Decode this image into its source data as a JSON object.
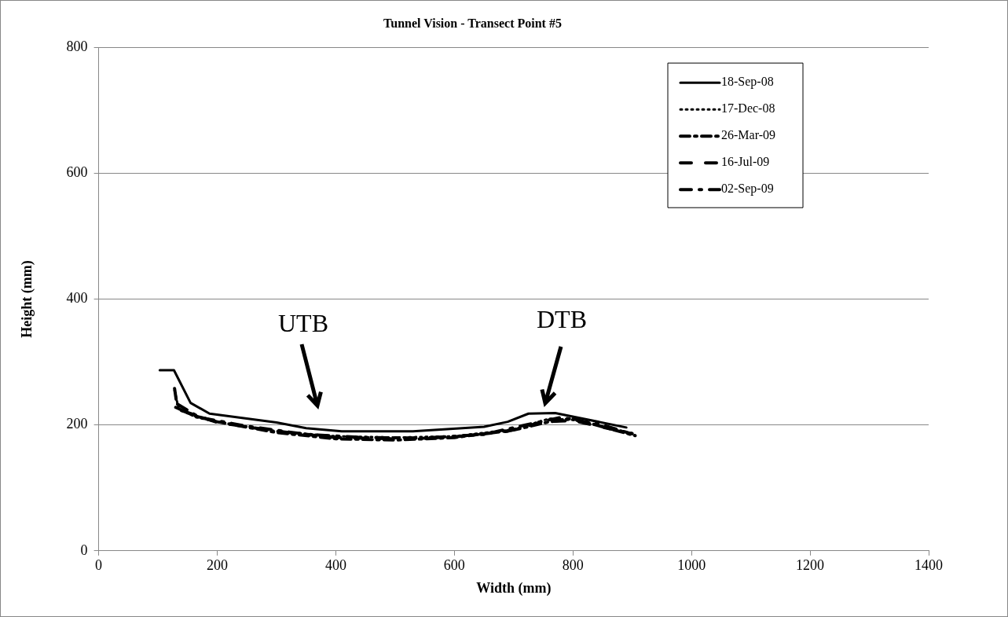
{
  "chart_data": {
    "type": "line",
    "title": "Tunnel Vision - Transect Point #5",
    "xlabel": "Width (mm)",
    "ylabel": "Height (mm)",
    "xlim": [
      0,
      1400
    ],
    "xticks": [
      0,
      200,
      400,
      600,
      800,
      1000,
      1200,
      1400
    ],
    "ylim": [
      0,
      800
    ],
    "yticks": [
      0,
      200,
      400,
      600,
      800
    ],
    "grid": "y",
    "legend": "top right",
    "marker": "none",
    "series": [
      {
        "name": "18-Sep-08",
        "color": "#000000",
        "line_style": "solid",
        "x": [
          103,
          127,
          155,
          187,
          300,
          350,
          410,
          530,
          650,
          690,
          725,
          770,
          890
        ],
        "values": [
          287,
          287,
          235,
          218,
          204,
          195,
          190,
          190,
          197,
          205,
          218,
          219,
          196
        ]
      },
      {
        "name": "17-Dec-08",
        "color": "#000000",
        "line_style": "dotted",
        "x": [
          128,
          135,
          165,
          200,
          300,
          400,
          500,
          600,
          700,
          760,
          800,
          900
        ],
        "values": [
          255,
          225,
          212,
          205,
          190,
          182,
          180,
          182,
          193,
          210,
          208,
          187
        ]
      },
      {
        "name": "26-Mar-09",
        "color": "#000000",
        "line_style": "dashed",
        "x": [
          130,
          160,
          200,
          300,
          400,
          500,
          600,
          700,
          760,
          800,
          905
        ],
        "values": [
          228,
          215,
          205,
          188,
          178,
          176,
          180,
          192,
          205,
          210,
          183
        ]
      },
      {
        "name": "16-Jul-09",
        "color": "#000000",
        "line_style": "dashed",
        "x": [
          128,
          133,
          200,
          300,
          400,
          500,
          600,
          690,
          750,
          800,
          900
        ],
        "values": [
          258,
          225,
          204,
          190,
          180,
          178,
          181,
          190,
          205,
          207,
          186
        ]
      },
      {
        "name": "02-Sep-09",
        "color": "#000000",
        "line_style": "dashed",
        "x": [
          133,
          170,
          250,
          350,
          450,
          550,
          650,
          720,
          780,
          850,
          898
        ],
        "values": [
          233,
          212,
          198,
          185,
          180,
          179,
          185,
          200,
          212,
          200,
          186
        ]
      }
    ],
    "annotations": [
      "UTB",
      "DTB"
    ]
  }
}
